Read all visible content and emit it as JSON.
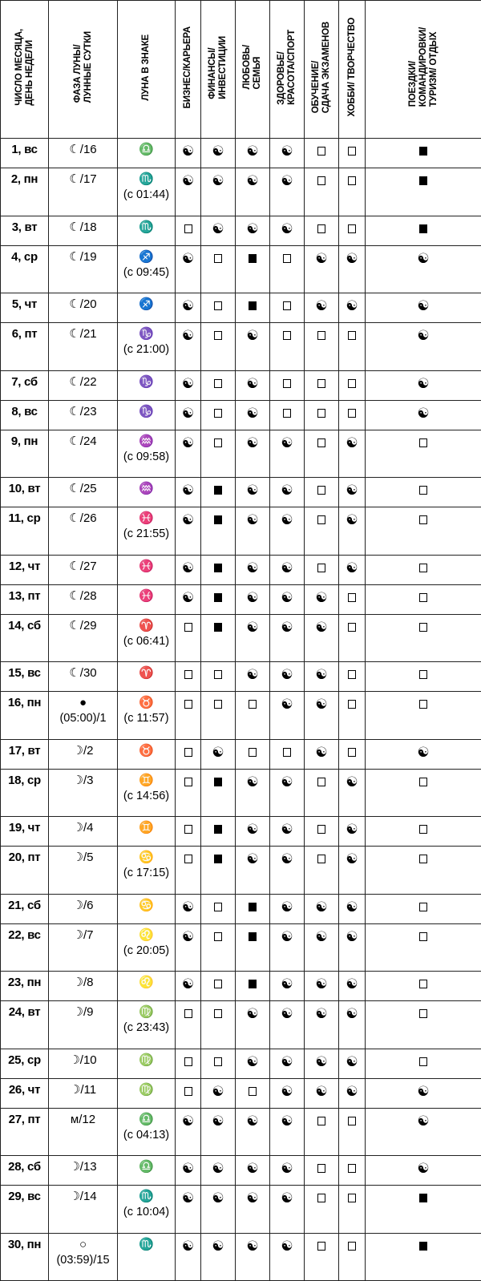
{
  "headers": [
    "ЧИСЛО МЕСЯЦА,\nДЕНЬ НЕДЕЛИ",
    "ФАЗА ЛУНЫ/\nЛУННЫЕ СУТКИ",
    "ЛУНА В ЗНАКЕ",
    "БИЗНЕС/КАРЬЕРА",
    "ФИНАНСЫ/\nИНВЕСТИЦИИ",
    "ЛЮБОВЬ/\nСЕМЬЯ",
    "ЗДОРОВЬЕ/\nКРАСОТА/СПОРТ",
    "ОБУЧЕНИЕ/\nСДАЧА ЭКЗАМЕНОВ",
    "ХОББИ/ ТВОРЧЕСТВО",
    "ПОЕЗДКИ/\nКОМАНДИРОВКИ/\nТУРИЗМ/ ОТДЫХ"
  ],
  "mark_legend": {
    "Y": "yin-yang",
    "O": "empty-square",
    "B": "filled-square"
  },
  "rows": [
    {
      "day": "1, вс",
      "phase": "☾/16",
      "phase2": "",
      "sign": "♎",
      "sign2": "",
      "marks": "YYYYOOB"
    },
    {
      "day": "2, пн",
      "phase": "☾/17",
      "phase2": "",
      "sign": "♏",
      "sign2": "(с 01:44)",
      "marks": "YYYYOOB"
    },
    {
      "day": "3, вт",
      "phase": "☾/18",
      "phase2": "",
      "sign": "♏",
      "sign2": "",
      "marks": "OYYYOOB"
    },
    {
      "day": "4, ср",
      "phase": "☾/19",
      "phase2": "",
      "sign": "♐",
      "sign2": "(с 09:45)",
      "marks": "YOBOYYY"
    },
    {
      "day": "5, чт",
      "phase": "☾/20",
      "phase2": "",
      "sign": "♐",
      "sign2": "",
      "marks": "YOBOYYY"
    },
    {
      "day": "6, пт",
      "phase": "☾/21",
      "phase2": "",
      "sign": "♑",
      "sign2": "(с 21:00)",
      "marks": "YOYOOOY"
    },
    {
      "day": "7, сб",
      "phase": "☾/22",
      "phase2": "",
      "sign": "♑",
      "sign2": "",
      "marks": "YOYOOOY"
    },
    {
      "day": "8, вс",
      "phase": "☾/23",
      "phase2": "",
      "sign": "♑",
      "sign2": "",
      "marks": "YOYOOOY"
    },
    {
      "day": "9, пн",
      "phase": "☾/24",
      "phase2": "",
      "sign": "♒",
      "sign2": "(с 09:58)",
      "marks": "YOYYOYO"
    },
    {
      "day": "10, вт",
      "phase": "☾/25",
      "phase2": "",
      "sign": "♒",
      "sign2": "",
      "marks": "YBYYOYO"
    },
    {
      "day": "11, ср",
      "phase": "☾/26",
      "phase2": "",
      "sign": "♓",
      "sign2": "(с 21:55)",
      "marks": "YBYYOYO"
    },
    {
      "day": "12, чт",
      "phase": "☾/27",
      "phase2": "",
      "sign": "♓",
      "sign2": "",
      "marks": "YBYYOYO"
    },
    {
      "day": "13, пт",
      "phase": "☾/28",
      "phase2": "",
      "sign": "♓",
      "sign2": "",
      "marks": "YBYYYOO"
    },
    {
      "day": "14, сб",
      "phase": "☾/29",
      "phase2": "",
      "sign": "♈",
      "sign2": "(с 06:41)",
      "marks": "OBYYYOO"
    },
    {
      "day": "15, вс",
      "phase": "☾/30",
      "phase2": "",
      "sign": "♈",
      "sign2": "",
      "marks": "OOYYYOO"
    },
    {
      "day": "16, пн",
      "phase": "●",
      "phase2": "(05:00)/1",
      "sign": "♉",
      "sign2": "(с 11:57)",
      "marks": "OOOYYOO"
    },
    {
      "day": "17, вт",
      "phase": "☽/2",
      "phase2": "",
      "sign": "♉",
      "sign2": "",
      "marks": "OYOOYOY"
    },
    {
      "day": "18, ср",
      "phase": "☽/3",
      "phase2": "",
      "sign": "♊",
      "sign2": "(с 14:56)",
      "marks": "OBYYOYO"
    },
    {
      "day": "19, чт",
      "phase": "☽/4",
      "phase2": "",
      "sign": "♊",
      "sign2": "",
      "marks": "OBYYOYO"
    },
    {
      "day": "20, пт",
      "phase": "☽/5",
      "phase2": "",
      "sign": "♋",
      "sign2": "(с 17:15)",
      "marks": "OBYYOYO"
    },
    {
      "day": "21, сб",
      "phase": "☽/6",
      "phase2": "",
      "sign": "♋",
      "sign2": "",
      "marks": "YOBYYYO"
    },
    {
      "day": "22, вс",
      "phase": "☽/7",
      "phase2": "",
      "sign": "♌",
      "sign2": "(с 20:05)",
      "marks": "YOBYYYO"
    },
    {
      "day": "23, пн",
      "phase": "☽/8",
      "phase2": "",
      "sign": "♌",
      "sign2": "",
      "marks": "YOBYYYO"
    },
    {
      "day": "24, вт",
      "phase": "☽/9",
      "phase2": "",
      "sign": "♍",
      "sign2": "(с 23:43)",
      "marks": "OOYYYYO"
    },
    {
      "day": "25, ср",
      "phase": "☽/10",
      "phase2": "",
      "sign": "♍",
      "sign2": "",
      "marks": "OOYYYYO"
    },
    {
      "day": "26, чт",
      "phase": "☽/11",
      "phase2": "",
      "sign": "♍",
      "sign2": "",
      "marks": "OYOYYYY"
    },
    {
      "day": "27, пт",
      "phase": "м/12",
      "phase2": "",
      "sign": "♎",
      "sign2": "(с 04:13)",
      "marks": "YYYYOOY"
    },
    {
      "day": "28, сб",
      "phase": "☽/13",
      "phase2": "",
      "sign": "♎",
      "sign2": "",
      "marks": "YYYYOOY"
    },
    {
      "day": "29, вс",
      "phase": "☽/14",
      "phase2": "",
      "sign": "♏",
      "sign2": "(с 10:04)",
      "marks": "YYYYOOB"
    },
    {
      "day": "30, пн",
      "phase": "○",
      "phase2": "(03:59)/15",
      "sign": "♏",
      "sign2": "",
      "marks": "YYYYOOB"
    }
  ]
}
